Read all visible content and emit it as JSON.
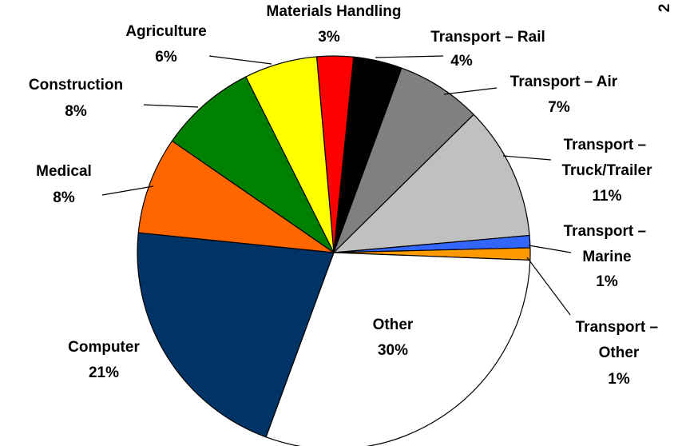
{
  "chart_data": {
    "type": "pie",
    "categories": [
      "Materials Handling",
      "Transport – Rail",
      "Transport – Air",
      "Transport – Truck/Trailer",
      "Transport – Marine",
      "Transport – Other",
      "Other",
      "Computer",
      "Medical",
      "Construction",
      "Agriculture"
    ],
    "values": [
      3,
      4,
      7,
      11,
      1,
      1,
      30,
      21,
      8,
      8,
      6
    ],
    "value_labels": [
      "3%",
      "4%",
      "7%",
      "11%",
      "1%",
      "1%",
      "30%",
      "21%",
      "8%",
      "8%",
      "6%"
    ],
    "colors": [
      "#ff0000",
      "#000000",
      "#808080",
      "#c0c0c0",
      "#3366ff",
      "#ff9900",
      "#ffffff",
      "#003366",
      "#ff6600",
      "#008000",
      "#ffff00"
    ],
    "page_number": "2"
  }
}
